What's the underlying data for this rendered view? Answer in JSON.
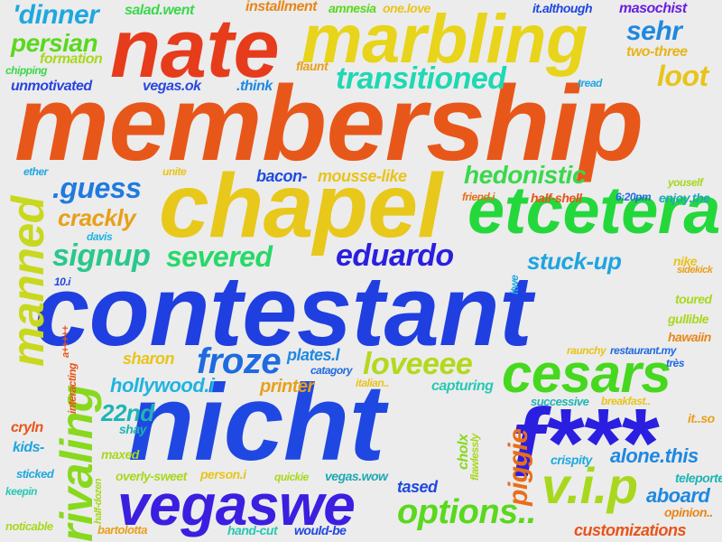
{
  "background": "#ececec",
  "words": [
    {
      "text": "membership",
      "color": "#e8571a"
    },
    {
      "text": "contestant",
      "color": "#1f3fe0"
    },
    {
      "text": "nicht",
      "color": "#1f48e2"
    },
    {
      "text": "nate",
      "color": "#e63c1c"
    },
    {
      "text": "chapel",
      "color": "#e8c81a"
    },
    {
      "text": "marbling",
      "color": "#e8d41a"
    },
    {
      "text": "f***",
      "color": "#2a1fe0"
    },
    {
      "text": "etcetera",
      "color": "#24d83c"
    },
    {
      "text": "vegaswe",
      "color": "#3a1fe0"
    },
    {
      "text": "cesars",
      "color": "#46d81e"
    },
    {
      "text": "v.i.p",
      "color": "#a8d81e"
    },
    {
      "text": "transitioned",
      "color": "#1fd8b4"
    },
    {
      "text": "manned",
      "color": "#c8d81e"
    },
    {
      "text": "rivaling",
      "color": "#88d81e"
    },
    {
      "text": "options..",
      "color": "#5ad81e"
    },
    {
      "text": "eduardo",
      "color": "#2a1fe0"
    },
    {
      "text": "froze",
      "color": "#1f6ae0"
    },
    {
      "text": "severed",
      "color": "#28d86a"
    },
    {
      "text": "signup",
      "color": "#2ac88c"
    },
    {
      "text": "hedonistic",
      "color": "#3ad84c"
    },
    {
      "text": ".guess",
      "color": "#1f7ae0"
    },
    {
      "text": "stuck-up",
      "color": "#1fa4e0"
    },
    {
      "text": "loveeee",
      "color": "#b4d81e"
    },
    {
      "text": "loot",
      "color": "#e8c41a"
    },
    {
      "text": "sehr",
      "color": "#1f88e0"
    },
    {
      "text": "piggie",
      "color": "#e86e1a"
    },
    {
      "text": "alone.this",
      "color": "#1f88e0"
    },
    {
      "text": "aboard",
      "color": "#1f88e0"
    },
    {
      "text": "'dinner",
      "color": "#1fa8e0"
    },
    {
      "text": "persian",
      "color": "#5ad81e"
    },
    {
      "text": "crackly",
      "color": "#e8a01a"
    },
    {
      "text": "hollywood.i",
      "color": "#1fb4e0"
    },
    {
      "text": "22nd",
      "color": "#1fb4b4"
    },
    {
      "text": "tased",
      "color": "#1f48e0"
    },
    {
      "text": "printer",
      "color": "#e8a01a"
    },
    {
      "text": "mousse-like",
      "color": "#e8c41a"
    },
    {
      "text": "formation",
      "color": "#a8d81e"
    },
    {
      "text": "unmotivated",
      "color": "#2a44e0"
    },
    {
      "text": "vegas.ok",
      "color": "#2a48e0"
    },
    {
      "text": ".think",
      "color": "#1f88e0"
    },
    {
      "text": "sharon",
      "color": "#e8c41a"
    },
    {
      "text": "plates.l",
      "color": "#1f88e0"
    },
    {
      "text": "bacon-",
      "color": "#1f4ae0"
    },
    {
      "text": "two-three",
      "color": "#e8b41a"
    },
    {
      "text": "capturing",
      "color": "#28c8b4"
    },
    {
      "text": "customizations",
      "color": "#e8541a"
    },
    {
      "text": "overly-sweet",
      "color": "#a8d81e"
    },
    {
      "text": "cryln",
      "color": "#e8541a"
    },
    {
      "text": "kids-",
      "color": "#1fa4e0"
    },
    {
      "text": "maxed",
      "color": "#a8d81e"
    },
    {
      "text": "shay",
      "color": "#1fb4b4"
    },
    {
      "text": "installment",
      "color": "#e8861a"
    },
    {
      "text": "amnesia",
      "color": "#5ad81e"
    },
    {
      "text": "one.love",
      "color": "#e8c41a"
    },
    {
      "text": "it.although",
      "color": "#1f48e0"
    },
    {
      "text": "masochist",
      "color": "#6a1fe0"
    },
    {
      "text": "salad.went",
      "color": "#3ad84c"
    },
    {
      "text": "chipping",
      "color": "#3ad84c"
    },
    {
      "text": "flaunt",
      "color": "#e8a01a"
    },
    {
      "text": "tread",
      "color": "#1fa8e0"
    },
    {
      "text": "ether",
      "color": "#1fa8e0"
    },
    {
      "text": "unite",
      "color": "#e8c41a"
    },
    {
      "text": "davis",
      "color": "#1fb4e0"
    },
    {
      "text": "friend.i",
      "color": "#e86e1a"
    },
    {
      "text": "half-shell",
      "color": "#e8541a"
    },
    {
      "text": "6:20pm",
      "color": "#1f6ae0"
    },
    {
      "text": "enjoy.the",
      "color": "#1fa8b4"
    },
    {
      "text": "youself",
      "color": "#a8d81e"
    },
    {
      "text": "itwe",
      "color": "#1fa8e0"
    },
    {
      "text": "nike",
      "color": "#e8c41a"
    },
    {
      "text": "sidekick",
      "color": "#e8a01a"
    },
    {
      "text": "10.i",
      "color": "#1f48e0"
    },
    {
      "text": "interacting",
      "color": "#e8541a"
    },
    {
      "text": "a+++++",
      "color": "#e8541a"
    },
    {
      "text": "toured",
      "color": "#a8d81e"
    },
    {
      "text": "gullible",
      "color": "#a8d81e"
    },
    {
      "text": "hawaiin",
      "color": "#e8861a"
    },
    {
      "text": "raunchy",
      "color": "#e8c41a"
    },
    {
      "text": "restaurant.my",
      "color": "#1f6ae0"
    },
    {
      "text": "très",
      "color": "#1f6ae0"
    },
    {
      "text": "catagory",
      "color": "#1f6ae0"
    },
    {
      "text": "italian..",
      "color": "#e8c41a"
    },
    {
      "text": "successive",
      "color": "#1fb4b4"
    },
    {
      "text": "breakfast..",
      "color": "#e8c41a"
    },
    {
      "text": "it..so",
      "color": "#e8a01a"
    },
    {
      "text": "cholx",
      "color": "#88d81e"
    },
    {
      "text": "flawlessly",
      "color": "#a8d81e"
    },
    {
      "text": "crispity",
      "color": "#1fa8e0"
    },
    {
      "text": "teleported",
      "color": "#1fb4b4"
    },
    {
      "text": "opinion..",
      "color": "#e8861a"
    },
    {
      "text": "person.i",
      "color": "#e8c41a"
    },
    {
      "text": "quickie",
      "color": "#a8d81e"
    },
    {
      "text": "vegas.wow",
      "color": "#1fa8b4"
    },
    {
      "text": "sticked",
      "color": "#1fa8e0"
    },
    {
      "text": "keepin",
      "color": "#28c8b4"
    },
    {
      "text": "half-dozen",
      "color": "#a8d81e"
    },
    {
      "text": "noticable",
      "color": "#a8d81e"
    },
    {
      "text": "bartolotta",
      "color": "#e8a01a"
    },
    {
      "text": "hand-cut",
      "color": "#28c8b4"
    },
    {
      "text": "would-be",
      "color": "#1f48e0"
    }
  ]
}
